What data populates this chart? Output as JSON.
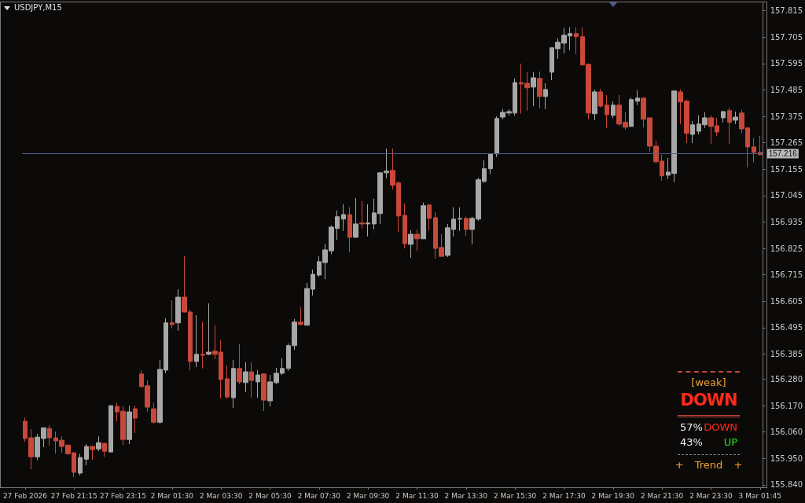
{
  "chart_data": {
    "type": "candlestick",
    "title": "USDJPY,M15",
    "categories": [
      "27 Feb 2026",
      null,
      null,
      null,
      null,
      null,
      null,
      null,
      "27 Feb 21:15",
      null,
      null,
      null,
      null,
      null,
      null,
      null,
      "27 Feb 23:15",
      null,
      null,
      null,
      null,
      null,
      null,
      null,
      "2 Mar 01:30",
      null,
      null,
      null,
      null,
      null,
      null,
      null,
      "2 Mar 03:30",
      null,
      null,
      null,
      null,
      null,
      null,
      null,
      "2 Mar 05:30",
      null,
      null,
      null,
      null,
      null,
      null,
      null,
      "2 Mar 07:30",
      null,
      null,
      null,
      null,
      null,
      null,
      null,
      "2 Mar 09:30",
      null,
      null,
      null,
      null,
      null,
      null,
      null,
      "2 Mar 11:30",
      null,
      null,
      null,
      null,
      null,
      null,
      null,
      "2 Mar 13:30",
      null,
      null,
      null,
      null,
      null,
      null,
      null,
      "2 Mar 15:30",
      null,
      null,
      null,
      null,
      null,
      null,
      null,
      "2 Mar 17:30",
      null,
      null,
      null,
      null,
      null,
      null,
      null,
      "2 Mar 19:30",
      null,
      null,
      null,
      null,
      null,
      null,
      null,
      "2 Mar 21:30",
      null,
      null,
      null,
      null,
      null,
      null,
      null,
      "2 Mar 23:30",
      null,
      null,
      null,
      null,
      null,
      null,
      null,
      "3 Mar 01:45"
    ],
    "ohlc": [
      [
        156.105,
        156.121,
        156.02,
        156.033
      ],
      [
        156.036,
        156.072,
        155.905,
        155.957
      ],
      [
        155.957,
        156.052,
        155.944,
        156.039
      ],
      [
        156.033,
        156.078,
        155.997,
        156.078
      ],
      [
        156.075,
        156.088,
        156.003,
        156.036
      ],
      [
        156.036,
        156.062,
        155.97,
        156.023
      ],
      [
        156.026,
        156.042,
        155.974,
        156.0
      ],
      [
        156.006,
        156.006,
        155.964,
        155.97
      ],
      [
        155.974,
        155.974,
        155.872,
        155.892
      ],
      [
        155.889,
        155.97,
        155.879,
        155.954
      ],
      [
        155.947,
        156.01,
        155.921,
        156.0
      ],
      [
        156.0,
        156.003,
        155.944,
        155.987
      ],
      [
        155.99,
        156.042,
        155.98,
        156.016
      ],
      [
        156.013,
        156.016,
        155.957,
        155.98
      ],
      [
        155.977,
        156.17,
        155.977,
        156.17
      ],
      [
        156.167,
        156.183,
        156.105,
        156.144
      ],
      [
        156.147,
        156.167,
        156.006,
        156.029
      ],
      [
        156.029,
        156.17,
        156.01,
        156.144
      ],
      [
        156.157,
        156.17,
        156.056,
        156.118
      ],
      [
        156.302,
        156.318,
        156.249,
        156.249
      ],
      [
        156.253,
        156.275,
        156.144,
        156.164
      ],
      [
        156.157,
        156.183,
        156.095,
        156.101
      ],
      [
        156.101,
        156.361,
        156.095,
        156.321
      ],
      [
        156.318,
        156.534,
        156.305,
        156.515
      ],
      [
        156.515,
        156.609,
        156.492,
        156.508
      ],
      [
        156.515,
        156.655,
        156.482,
        156.622
      ],
      [
        156.622,
        156.792,
        156.557,
        156.56
      ],
      [
        156.56,
        156.57,
        156.318,
        156.354
      ],
      [
        156.354,
        156.547,
        156.331,
        156.384
      ],
      [
        156.384,
        156.518,
        156.325,
        156.38
      ],
      [
        156.384,
        156.596,
        156.38,
        156.393
      ],
      [
        156.397,
        156.505,
        156.364,
        156.384
      ],
      [
        156.393,
        156.443,
        156.2,
        156.279
      ],
      [
        156.282,
        156.338,
        156.2,
        156.206
      ],
      [
        156.203,
        156.361,
        156.16,
        156.325
      ],
      [
        156.325,
        156.426,
        156.259,
        156.269
      ],
      [
        156.266,
        156.351,
        156.226,
        156.311
      ],
      [
        156.311,
        156.351,
        156.203,
        156.275
      ],
      [
        156.269,
        156.318,
        156.203,
        156.298
      ],
      [
        156.302,
        156.305,
        156.147,
        156.193
      ],
      [
        156.19,
        156.298,
        156.167,
        156.269
      ],
      [
        156.266,
        156.328,
        156.259,
        156.305
      ],
      [
        156.305,
        156.367,
        156.298,
        156.325
      ],
      [
        156.325,
        156.429,
        156.315,
        156.42
      ],
      [
        156.42,
        156.531,
        156.403,
        156.518
      ],
      [
        156.518,
        156.58,
        156.505,
        156.508
      ],
      [
        156.505,
        156.681,
        156.505,
        156.658
      ],
      [
        156.655,
        156.737,
        156.629,
        156.717
      ],
      [
        156.714,
        156.792,
        156.707,
        156.77
      ],
      [
        156.766,
        156.845,
        156.697,
        156.819
      ],
      [
        156.815,
        156.921,
        156.802,
        156.914
      ],
      [
        156.908,
        156.983,
        156.861,
        156.957
      ],
      [
        156.947,
        157.009,
        156.898,
        156.966
      ],
      [
        156.966,
        156.996,
        156.809,
        156.871
      ],
      [
        156.871,
        157.035,
        156.871,
        156.927
      ],
      [
        156.931,
        157.022,
        156.908,
        156.927
      ],
      [
        156.927,
        157.009,
        156.875,
        156.931
      ],
      [
        156.927,
        157.032,
        156.904,
        156.973
      ],
      [
        156.97,
        157.143,
        156.927,
        157.14
      ],
      [
        157.14,
        157.241,
        157.117,
        157.147
      ],
      [
        157.15,
        157.241,
        157.071,
        157.088
      ],
      [
        157.098,
        157.104,
        156.894,
        156.96
      ],
      [
        156.963,
        157.012,
        156.825,
        156.845
      ],
      [
        156.842,
        156.901,
        156.786,
        156.884
      ],
      [
        156.884,
        156.904,
        156.815,
        156.865
      ],
      [
        156.865,
        157.016,
        156.865,
        157.003
      ],
      [
        157.006,
        157.009,
        156.901,
        156.95
      ],
      [
        156.953,
        156.976,
        156.783,
        156.825
      ],
      [
        156.829,
        156.884,
        156.792,
        156.792
      ],
      [
        156.796,
        156.927,
        156.789,
        156.911
      ],
      [
        156.904,
        156.996,
        156.875,
        156.947
      ],
      [
        156.947,
        156.996,
        156.898,
        156.95
      ],
      [
        156.95,
        156.957,
        156.878,
        156.904
      ],
      [
        156.904,
        156.957,
        156.842,
        156.95
      ],
      [
        156.947,
        157.12,
        156.94,
        157.111
      ],
      [
        157.104,
        157.192,
        157.098,
        157.157
      ],
      [
        157.157,
        157.222,
        157.134,
        157.219
      ],
      [
        157.219,
        157.375,
        157.206,
        157.366
      ],
      [
        157.372,
        157.405,
        157.363,
        157.392
      ],
      [
        157.389,
        157.405,
        157.379,
        157.395
      ],
      [
        157.389,
        157.533,
        157.379,
        157.516
      ],
      [
        157.516,
        157.595,
        157.386,
        157.51
      ],
      [
        157.513,
        157.559,
        157.399,
        157.494
      ],
      [
        157.497,
        157.559,
        157.418,
        157.536
      ],
      [
        157.533,
        157.562,
        157.408,
        157.458
      ],
      [
        157.458,
        157.513,
        157.405,
        157.487
      ],
      [
        157.559,
        157.661,
        157.526,
        157.661
      ],
      [
        157.657,
        157.7,
        157.615,
        157.684
      ],
      [
        157.68,
        157.743,
        157.638,
        157.713
      ],
      [
        157.71,
        157.746,
        157.651,
        157.72
      ],
      [
        157.72,
        157.746,
        157.635,
        157.707
      ],
      [
        157.707,
        157.746,
        157.589,
        157.589
      ],
      [
        157.592,
        157.595,
        157.363,
        157.389
      ],
      [
        157.386,
        157.487,
        157.359,
        157.477
      ],
      [
        157.477,
        157.49,
        157.412,
        157.418
      ],
      [
        157.422,
        157.464,
        157.327,
        157.382
      ],
      [
        157.379,
        157.438,
        157.369,
        157.422
      ],
      [
        157.422,
        157.464,
        157.336,
        157.343
      ],
      [
        157.35,
        157.392,
        157.32,
        157.33
      ],
      [
        157.333,
        157.454,
        157.333,
        157.445
      ],
      [
        157.438,
        157.484,
        157.422,
        157.451
      ],
      [
        157.451,
        157.454,
        157.33,
        157.363
      ],
      [
        157.369,
        157.369,
        157.228,
        157.251
      ],
      [
        157.251,
        157.274,
        157.179,
        157.186
      ],
      [
        157.189,
        157.215,
        157.107,
        157.127
      ],
      [
        157.13,
        157.202,
        157.114,
        157.143
      ],
      [
        157.137,
        157.481,
        157.101,
        157.481
      ],
      [
        157.477,
        157.487,
        157.343,
        157.435
      ],
      [
        157.438,
        157.445,
        157.264,
        157.304
      ],
      [
        157.3,
        157.356,
        157.264,
        157.34
      ],
      [
        157.313,
        157.379,
        157.3,
        157.343
      ],
      [
        157.34,
        157.392,
        157.327,
        157.369
      ],
      [
        157.369,
        157.379,
        157.261,
        157.333
      ],
      [
        157.336,
        157.369,
        157.294,
        157.31
      ],
      [
        157.369,
        157.399,
        157.35,
        157.395
      ],
      [
        157.399,
        157.412,
        157.261,
        157.35
      ],
      [
        157.359,
        157.395,
        157.343,
        157.372
      ],
      [
        157.389,
        157.402,
        157.304,
        157.323
      ],
      [
        157.327,
        157.33,
        157.163,
        157.248
      ],
      [
        157.248,
        157.284,
        157.183,
        157.225
      ],
      [
        157.225,
        157.294,
        157.215,
        157.215
      ]
    ],
    "ylim": [
      155.83,
      157.85
    ],
    "yticks": [
      157.815,
      157.705,
      157.595,
      157.485,
      157.375,
      157.265,
      157.155,
      157.045,
      156.935,
      156.825,
      156.715,
      156.605,
      156.495,
      156.385,
      {
        "value": 156.28,
        "label": "156.280"
      },
      {
        "value": 156.17,
        "label": "156.170"
      },
      {
        "value": 156.06,
        "label": "156.060"
      },
      {
        "value": 155.95,
        "label": "155.950"
      },
      {
        "value": 155.84,
        "label": "155.840"
      }
    ],
    "ref_lines": [
      {
        "axis": "y",
        "value": 157.216,
        "label": "157.216",
        "color": "#4b5a8a"
      }
    ],
    "annotations": [
      "[weak]",
      "DOWN",
      "57%",
      "DOWN",
      "43%",
      "UP",
      "+ Trend +"
    ],
    "grid": false
  }
}
